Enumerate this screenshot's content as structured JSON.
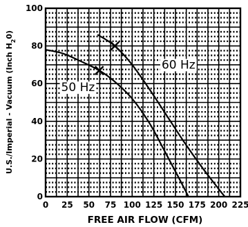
{
  "chart_data": {
    "type": "line",
    "title": "",
    "xlabel": "FREE AIR FLOW (CFM)",
    "ylabel_parts": [
      "U.S./Imperial - Vacuum (Inch H",
      "2",
      "0)"
    ],
    "xlim": [
      0,
      225
    ],
    "ylim": [
      0,
      100
    ],
    "x_ticks": [
      0,
      25,
      50,
      75,
      100,
      125,
      150,
      175,
      200,
      225
    ],
    "y_ticks": [
      0,
      20,
      40,
      60,
      80,
      100
    ],
    "grid": true,
    "series": [
      {
        "name": "60 Hz",
        "label": "60 Hz",
        "label_at": [
          134,
          68
        ],
        "marker_at": [
          80,
          80
        ],
        "x": [
          60,
          80,
          100,
          120,
          140,
          160,
          180,
          200,
          207
        ],
        "y": [
          86,
          80,
          70,
          57,
          43,
          29,
          16,
          4,
          0
        ]
      },
      {
        "name": "50 Hz",
        "label": "50 Hz",
        "label_at": [
          18,
          56
        ],
        "marker_at": [
          62,
          67
        ],
        "x": [
          0,
          20,
          40,
          62,
          80,
          100,
          120,
          140,
          155,
          165
        ],
        "y": [
          78,
          76,
          72,
          67,
          61,
          52,
          39,
          22,
          9,
          0
        ]
      }
    ]
  }
}
